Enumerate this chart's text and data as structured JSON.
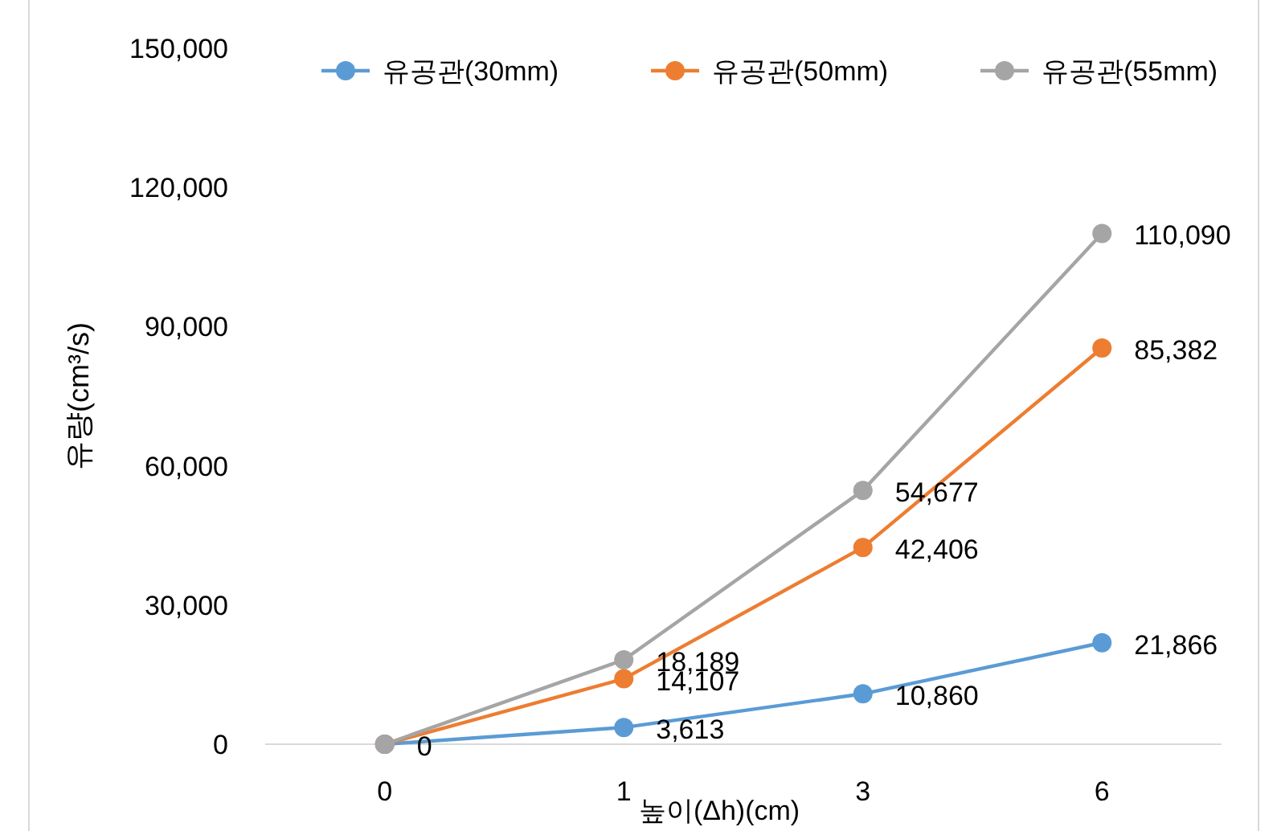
{
  "chart_data": {
    "type": "line",
    "xlabel": "높이(Δh)(cm)",
    "ylabel": "유량(cm³/s)",
    "categories": [
      "0",
      "1",
      "3",
      "6"
    ],
    "ylim": [
      0,
      150000
    ],
    "yticks": [
      {
        "value": 0,
        "label": "0"
      },
      {
        "value": 30000,
        "label": "30,000"
      },
      {
        "value": 60000,
        "label": "60,000"
      },
      {
        "value": 90000,
        "label": "90,000"
      },
      {
        "value": 120000,
        "label": "120,000"
      },
      {
        "value": 150000,
        "label": "150,000"
      }
    ],
    "grid": false,
    "legend": "top",
    "marker": "circle",
    "line_style": "solid",
    "series": [
      {
        "name": "유공관(30mm)",
        "color": "#5b9bd5",
        "values": [
          0,
          3613,
          10860,
          21866
        ],
        "value_labels": [
          null,
          "3,613",
          "10,860",
          "21,866"
        ]
      },
      {
        "name": "유공관(50mm)",
        "color": "#ed7d31",
        "values": [
          0,
          14107,
          42406,
          85382
        ],
        "value_labels": [
          null,
          "14,107",
          "42,406",
          "85,382"
        ]
      },
      {
        "name": "유공관(55mm)",
        "color": "#a5a5a5",
        "values": [
          0,
          18189,
          54677,
          110090
        ],
        "value_labels": [
          "0",
          "18,189",
          "54,677",
          "110,090"
        ]
      }
    ]
  }
}
